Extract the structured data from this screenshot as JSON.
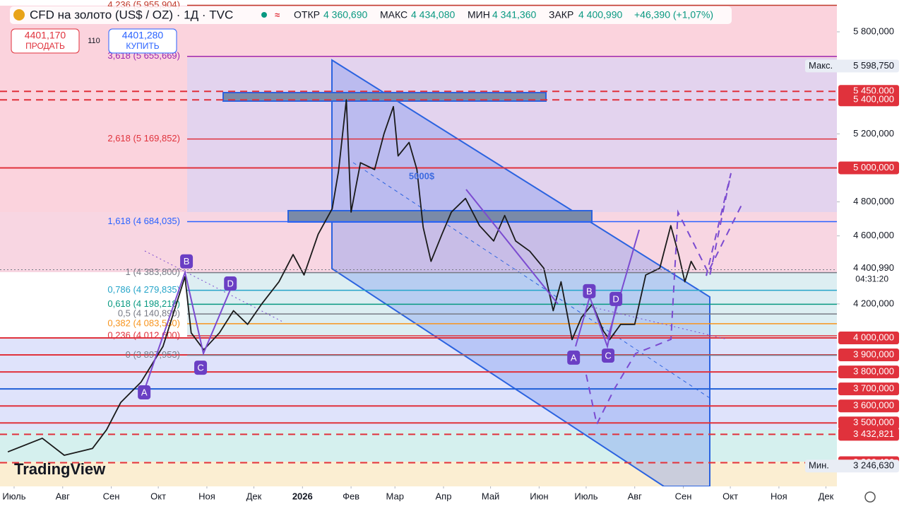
{
  "header": {
    "title": "CFD на золото (US$ / OZ) · 1Д · TVC",
    "open_label": "ОТКР",
    "open": "4 360,690",
    "high_label": "МАКС",
    "high": "4 434,080",
    "low_label": "МИН",
    "low": "4 341,360",
    "close_label": "ЗАКР",
    "close": "4 400,990",
    "change": "+46,390 (+1,07%)",
    "sell_price": "4401,170",
    "sell_label": "ПРОДАТЬ",
    "spread": "110",
    "buy_price": "4401,280",
    "buy_label": "КУПИТЬ",
    "logo": "TradingView"
  },
  "chart_data": {
    "type": "line",
    "color": "#1a1a1a",
    "x": [
      -4,
      18,
      32,
      50,
      59,
      68,
      81,
      95,
      109,
      113,
      121,
      131,
      140,
      149,
      158,
      169,
      178,
      185,
      194,
      203,
      207,
      212,
      215,
      221,
      230,
      236,
      242,
      245,
      252,
      257,
      261,
      266,
      273,
      279,
      288,
      297,
      306,
      313,
      320,
      329,
      338,
      344,
      349,
      356,
      362,
      369,
      376,
      380,
      387,
      396,
      403,
      412,
      419,
      424,
      428,
      432,
      435
    ],
    "values": [
      3330000,
      3410000,
      3310000,
      3350000,
      3460000,
      3620000,
      3740000,
      3950000,
      4360000,
      4030000,
      3930000,
      4030000,
      4160000,
      4080000,
      4200000,
      4330000,
      4490000,
      4370000,
      4610000,
      4760000,
      4980000,
      5400000,
      4740000,
      5030000,
      4990000,
      5200000,
      5360000,
      5070000,
      5150000,
      4990000,
      4650000,
      4450000,
      4610000,
      4740000,
      4820000,
      4660000,
      4570000,
      4720000,
      4570000,
      4510000,
      4410000,
      4160000,
      4330000,
      3990000,
      4120000,
      4200000,
      4040000,
      3990000,
      4080000,
      4080000,
      4370000,
      4410000,
      4660000,
      4490000,
      4330000,
      4450000,
      4400000
    ],
    "xlim": [
      -9,
      525
    ],
    "xticks": [
      {
        "value": 0,
        "label": "Июль"
      },
      {
        "value": 31,
        "label": "Авг"
      },
      {
        "value": 62,
        "label": "Сен"
      },
      {
        "value": 92,
        "label": "Окт"
      },
      {
        "value": 123,
        "label": "Ноя"
      },
      {
        "value": 153,
        "label": "Дек"
      },
      {
        "value": 184,
        "label": "2026"
      },
      {
        "value": 215,
        "label": "Фев"
      },
      {
        "value": 243,
        "label": "Мар"
      },
      {
        "value": 274,
        "label": "Апр"
      },
      {
        "value": 304,
        "label": "Май"
      },
      {
        "value": 335,
        "label": "Июн"
      },
      {
        "value": 365,
        "label": "Июль"
      },
      {
        "value": 396,
        "label": "Авг"
      },
      {
        "value": 427,
        "label": "Сен"
      },
      {
        "value": 457,
        "label": "Окт"
      },
      {
        "value": 488,
        "label": "Ноя"
      },
      {
        "value": 518,
        "label": "Дек"
      }
    ],
    "ylim": [
      3127000,
      5953800
    ],
    "yticks": [
      {
        "value": 5800000,
        "label": "5 800,000"
      },
      {
        "value": 5200000,
        "label": "5 200,000"
      },
      {
        "value": 4800000,
        "label": "4 800,000"
      },
      {
        "value": 4600000,
        "label": "4 600,000"
      },
      {
        "value": 4200000,
        "label": "4 200,000"
      }
    ],
    "grid": false,
    "levels": [
      {
        "value": 5450000,
        "label": "5 450,000",
        "color": "#e0323c",
        "dashed": true
      },
      {
        "value": 5400000,
        "label": "5 400,000",
        "color": "#e0323c",
        "dashed": true
      },
      {
        "value": 5000000,
        "label": "5 000,000",
        "color": "#e0323c",
        "dashed": false
      },
      {
        "value": 4000000,
        "label": "4 000,000",
        "color": "#e0323c",
        "dashed": false
      },
      {
        "value": 3900000,
        "label": "3 900,000",
        "color": "#e0323c",
        "dashed": false
      },
      {
        "value": 3800000,
        "label": "3 800,000",
        "color": "#e0323c",
        "dashed": false
      },
      {
        "value": 3700000,
        "label": "3 700,000",
        "color": "#2060d8",
        "dashed": false
      },
      {
        "value": 3600000,
        "label": "3 600,000",
        "color": "#e0323c",
        "dashed": false
      },
      {
        "value": 3500000,
        "label": "3 500,000",
        "color": "#e0323c",
        "dashed": false
      },
      {
        "value": 3432821,
        "label": "3 432,821",
        "color": "#e0323c",
        "dashed": true
      },
      {
        "value": 3266486,
        "label": "3 266,486",
        "color": "#e0323c",
        "dashed": true
      }
    ],
    "fib": [
      {
        "value": 5955904,
        "label": "4,236 (5 955,904)",
        "color": "#c0392b"
      },
      {
        "value": 5655669,
        "label": "3,618 (5 655,669)",
        "color": "#9c27b0"
      },
      {
        "value": 5169852,
        "label": "2,618 (5 169,852)",
        "color": "#e0323c"
      },
      {
        "value": 4684035,
        "label": "1,618 (4 684,035)",
        "color": "#2962ff"
      },
      {
        "value": 4383800,
        "label": "1 (4 383,800)",
        "color": "#787b86"
      },
      {
        "value": 4279835,
        "label": "0,786 (4 279,835)",
        "color": "#26a5c9"
      },
      {
        "value": 4198218,
        "label": "0,618 (4 198,218)",
        "color": "#089981"
      },
      {
        "value": 4140890,
        "label": "0,5 (4 140,890)",
        "color": "#787b86"
      },
      {
        "value": 4083530,
        "label": "0,382 (4 083,530)",
        "color": "#f7941d"
      },
      {
        "value": 4012600,
        "label": "0,236 (4 012,600)",
        "color": "#e0323c"
      },
      {
        "value": 3897953,
        "label": "0 (3 897,953)",
        "color": "#787b86"
      }
    ],
    "patterns": [
      {
        "label": "A",
        "x": 83,
        "y": 3680000
      },
      {
        "label": "B",
        "x": 110,
        "y": 4450000
      },
      {
        "label": "C",
        "x": 119,
        "y": 3825000
      },
      {
        "label": "D",
        "x": 138,
        "y": 4320000
      },
      {
        "label": "A",
        "x": 357,
        "y": 3884000
      },
      {
        "label": "B",
        "x": 367,
        "y": 4275000
      },
      {
        "label": "C",
        "x": 379,
        "y": 3896000
      },
      {
        "label": "D",
        "x": 384,
        "y": 4229000
      }
    ],
    "annotation": "5000$",
    "last_price": {
      "value": 4400990,
      "label": "4 400,990",
      "countdown": "04:31:20"
    },
    "max_marker": {
      "value": 5598750,
      "label": "5 598,750",
      "title": "Макс."
    },
    "min_marker": {
      "value": 3246630,
      "label": "3 246,630",
      "title": "Мин."
    }
  }
}
